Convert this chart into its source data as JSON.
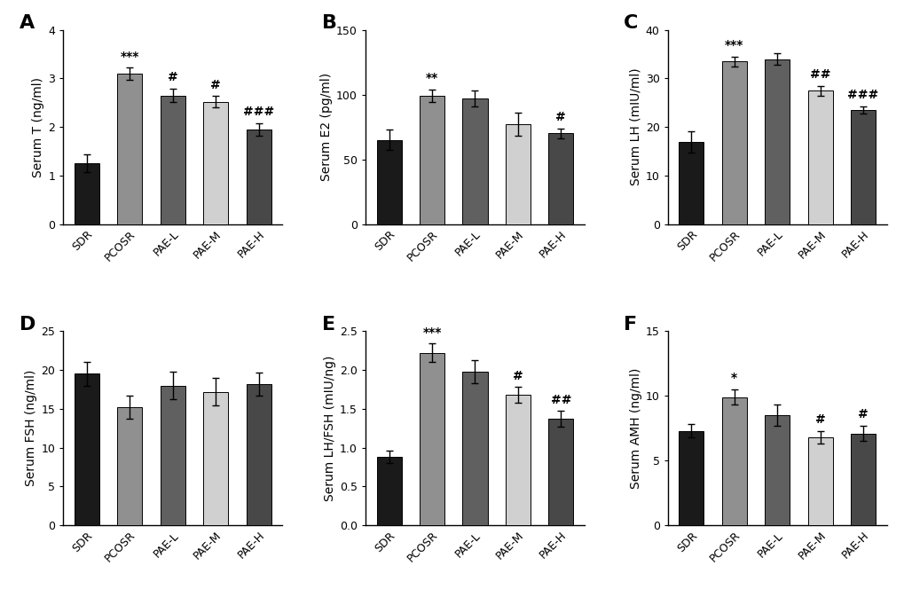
{
  "panels": [
    {
      "label": "A",
      "ylabel": "Serum T (ng/ml)",
      "ylim": [
        0,
        4
      ],
      "yticks": [
        0,
        1,
        2,
        3,
        4
      ],
      "values": [
        1.25,
        3.1,
        2.65,
        2.52,
        1.95
      ],
      "errors": [
        0.18,
        0.12,
        0.14,
        0.12,
        0.13
      ],
      "annotations": [
        "",
        "***",
        "#",
        "#",
        "###"
      ]
    },
    {
      "label": "B",
      "ylabel": "Serum E2 (pg/ml)",
      "ylim": [
        0,
        150
      ],
      "yticks": [
        0,
        50,
        100,
        150
      ],
      "values": [
        65,
        99,
        97,
        77,
        70
      ],
      "errors": [
        8,
        5,
        6,
        9,
        4
      ],
      "annotations": [
        "",
        "**",
        "",
        "",
        "#"
      ]
    },
    {
      "label": "C",
      "ylabel": "Serum LH (mIU/ml)",
      "ylim": [
        0,
        40
      ],
      "yticks": [
        0,
        10,
        20,
        30,
        40
      ],
      "values": [
        17,
        33.5,
        34,
        27.5,
        23.5
      ],
      "errors": [
        2.2,
        1.0,
        1.2,
        1.0,
        0.8
      ],
      "annotations": [
        "",
        "***",
        "",
        "##",
        "###"
      ]
    },
    {
      "label": "D",
      "ylabel": "Serum FSH (ng/ml)",
      "ylim": [
        0,
        25
      ],
      "yticks": [
        0,
        5,
        10,
        15,
        20,
        25
      ],
      "values": [
        19.5,
        15.2,
        18.0,
        17.2,
        18.2
      ],
      "errors": [
        1.5,
        1.5,
        1.8,
        1.8,
        1.5
      ],
      "annotations": [
        "",
        "",
        "",
        "",
        ""
      ]
    },
    {
      "label": "E",
      "ylabel": "Serum LH/FSH (mIU/ng)",
      "ylim": [
        0.0,
        2.5
      ],
      "yticks": [
        0.0,
        0.5,
        1.0,
        1.5,
        2.0,
        2.5
      ],
      "values": [
        0.88,
        2.22,
        1.98,
        1.68,
        1.37
      ],
      "errors": [
        0.08,
        0.12,
        0.15,
        0.1,
        0.1
      ],
      "annotations": [
        "",
        "***",
        "",
        "#",
        "##"
      ]
    },
    {
      "label": "F",
      "ylabel": "Serum AMH (ng/ml)",
      "ylim": [
        0,
        15
      ],
      "yticks": [
        0,
        5,
        10,
        15
      ],
      "values": [
        7.3,
        9.9,
        8.5,
        6.8,
        7.1
      ],
      "errors": [
        0.5,
        0.6,
        0.8,
        0.5,
        0.6
      ],
      "annotations": [
        "",
        "*",
        "",
        "#",
        "#"
      ]
    }
  ],
  "categories": [
    "SDR",
    "PCOSR",
    "PAE-L",
    "PAE-M",
    "PAE-H"
  ],
  "bar_colors": [
    "#1a1a1a",
    "#909090",
    "#606060",
    "#d0d0d0",
    "#484848"
  ],
  "background_color": "#ffffff",
  "panel_label_fontsize": 16,
  "axis_label_fontsize": 10,
  "tick_fontsize": 9,
  "annot_fontsize": 10,
  "bar_width": 0.58
}
